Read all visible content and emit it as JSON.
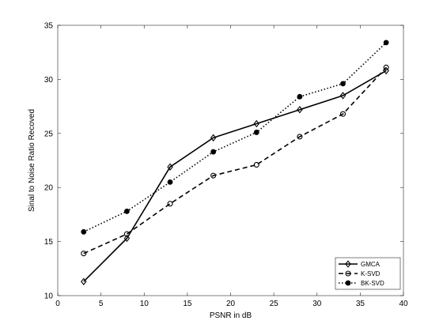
{
  "chart_data": {
    "type": "line",
    "xlabel": "PSNR in dB",
    "ylabel": "Sinal to Noise Ratio Recoved",
    "xlim": [
      0,
      40
    ],
    "ylim": [
      10,
      35
    ],
    "xticks": [
      0,
      5,
      10,
      15,
      20,
      25,
      30,
      35,
      40
    ],
    "yticks": [
      10,
      15,
      20,
      25,
      30,
      35
    ],
    "x": [
      3,
      8,
      13,
      18,
      23,
      28,
      33,
      38
    ],
    "grid": false,
    "legend_position": "bottom-right",
    "series": [
      {
        "name": "GMCA",
        "line_style": "solid",
        "marker": "diamond",
        "values": [
          11.3,
          15.3,
          21.9,
          24.6,
          25.9,
          27.2,
          28.5,
          30.8
        ]
      },
      {
        "name": "K-SVD",
        "line_style": "dashed",
        "marker": "open-circle",
        "values": [
          13.9,
          15.7,
          18.5,
          21.1,
          22.1,
          24.7,
          26.8,
          31.1
        ]
      },
      {
        "name": "BK-SVD",
        "line_style": "dotted",
        "marker": "filled-circle",
        "values": [
          15.9,
          17.8,
          20.5,
          23.3,
          25.1,
          28.4,
          29.6,
          33.4
        ]
      }
    ]
  }
}
